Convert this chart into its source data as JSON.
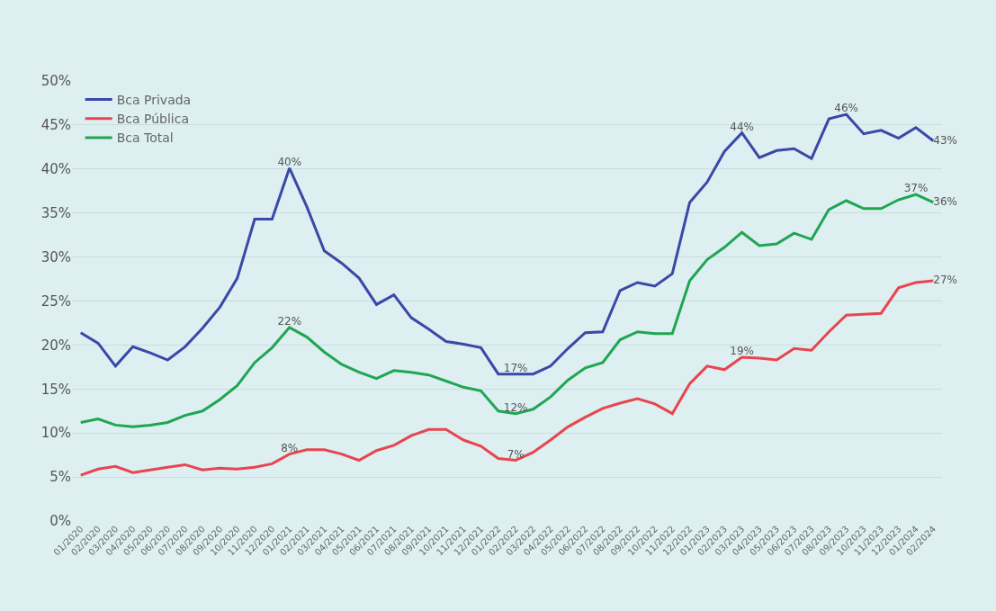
{
  "chart_data": {
    "type": "line",
    "categories": [
      "01/2020",
      "02/2020",
      "03/2020",
      "04/2020",
      "05/2020",
      "06/2020",
      "07/2020",
      "08/2020",
      "09/2020",
      "10/2020",
      "11/2020",
      "12/2020",
      "01/2021",
      "02/2021",
      "03/2021",
      "04/2021",
      "05/2021",
      "06/2021",
      "07/2021",
      "08/2021",
      "09/2021",
      "10/2021",
      "11/2021",
      "12/2021",
      "01/2022",
      "02/2022",
      "03/2022",
      "04/2022",
      "05/2022",
      "06/2022",
      "07/2022",
      "08/2022",
      "09/2022",
      "10/2022",
      "11/2022",
      "12/2022",
      "01/2023",
      "02/2023",
      "03/2023",
      "04/2023",
      "05/2023",
      "06/2023",
      "07/2023",
      "08/2023",
      "09/2023",
      "10/2023",
      "11/2023",
      "12/2023",
      "01/2024",
      "02/2024"
    ],
    "series": [
      {
        "name": "Bca Privada",
        "color": "#3a48a8",
        "values": [
          21.4,
          20.2,
          17.6,
          19.8,
          19.1,
          18.3,
          19.8,
          21.9,
          24.3,
          27.6,
          34.3,
          34.3,
          40.1,
          35.7,
          30.7,
          29.3,
          27.6,
          24.6,
          25.7,
          23.1,
          21.8,
          20.4,
          20.1,
          19.7,
          16.7,
          16.7,
          16.7,
          17.6,
          19.6,
          21.4,
          21.5,
          26.2,
          27.1,
          26.7,
          28.1,
          36.2,
          38.5,
          42.0,
          44.1,
          41.3,
          42.1,
          42.3,
          41.2,
          45.7,
          46.2,
          44.0,
          44.4,
          43.5,
          44.7,
          43.2
        ],
        "value_labels": [
          null,
          null,
          null,
          null,
          null,
          null,
          null,
          null,
          null,
          null,
          null,
          null,
          "40%",
          null,
          null,
          null,
          null,
          null,
          null,
          null,
          null,
          null,
          null,
          null,
          null,
          "17%",
          null,
          null,
          null,
          null,
          null,
          null,
          null,
          null,
          null,
          null,
          null,
          null,
          "44%",
          null,
          null,
          null,
          null,
          null,
          "46%",
          null,
          null,
          null,
          null,
          "43%"
        ]
      },
      {
        "name": "Bca Pública",
        "color": "#e8454f",
        "values": [
          5.2,
          5.9,
          6.2,
          5.5,
          5.8,
          6.1,
          6.4,
          5.8,
          6.0,
          5.9,
          6.1,
          6.5,
          7.6,
          8.1,
          8.1,
          7.6,
          6.9,
          8.0,
          8.6,
          9.7,
          10.4,
          10.4,
          9.2,
          8.5,
          7.1,
          6.9,
          7.8,
          9.2,
          10.7,
          11.8,
          12.8,
          13.4,
          13.9,
          13.3,
          12.2,
          15.6,
          17.6,
          17.2,
          18.6,
          18.5,
          18.3,
          19.6,
          19.4,
          21.5,
          23.4,
          23.5,
          23.6,
          26.5,
          27.1,
          27.3
        ],
        "value_labels": [
          null,
          null,
          null,
          null,
          null,
          null,
          null,
          null,
          null,
          null,
          null,
          null,
          "8%",
          null,
          null,
          null,
          null,
          null,
          null,
          null,
          null,
          null,
          null,
          null,
          null,
          "7%",
          null,
          null,
          null,
          null,
          null,
          null,
          null,
          null,
          null,
          null,
          null,
          null,
          "19%",
          null,
          null,
          null,
          null,
          null,
          null,
          null,
          null,
          null,
          null,
          "27%"
        ]
      },
      {
        "name": "Bca Total",
        "color": "#1fa653",
        "values": [
          11.2,
          11.6,
          10.9,
          10.7,
          10.9,
          11.2,
          12.0,
          12.5,
          13.8,
          15.4,
          18.0,
          19.7,
          22.0,
          20.9,
          19.2,
          17.8,
          16.9,
          16.2,
          17.1,
          16.9,
          16.6,
          15.9,
          15.2,
          14.8,
          12.5,
          12.2,
          12.7,
          14.1,
          16.0,
          17.4,
          18.0,
          20.6,
          21.5,
          21.3,
          21.3,
          27.3,
          29.7,
          31.1,
          32.8,
          31.3,
          31.5,
          32.7,
          32.0,
          35.4,
          36.4,
          35.5,
          35.5,
          36.5,
          37.1,
          36.2
        ],
        "value_labels": [
          null,
          null,
          null,
          null,
          null,
          null,
          null,
          null,
          null,
          null,
          null,
          null,
          "22%",
          null,
          null,
          null,
          null,
          null,
          null,
          null,
          null,
          null,
          null,
          null,
          null,
          "12%",
          null,
          null,
          null,
          null,
          null,
          null,
          null,
          null,
          null,
          null,
          null,
          null,
          null,
          null,
          null,
          null,
          null,
          null,
          null,
          null,
          null,
          null,
          "37%",
          "36%"
        ]
      }
    ],
    "ylim": [
      0,
      50
    ],
    "yticks": [
      {
        "value": 0,
        "label": "0%"
      },
      {
        "value": 5,
        "label": "5%"
      },
      {
        "value": 10,
        "label": "10%"
      },
      {
        "value": 15,
        "label": "15%"
      },
      {
        "value": 20,
        "label": "20%"
      },
      {
        "value": 25,
        "label": "25%"
      },
      {
        "value": 30,
        "label": "30%"
      },
      {
        "value": 35,
        "label": "35%"
      },
      {
        "value": 40,
        "label": "40%"
      },
      {
        "value": 45,
        "label": "45%"
      },
      {
        "value": 50,
        "label": "50%"
      }
    ],
    "grid": "y",
    "legend": "top left",
    "marker": "none",
    "line_style": "solid"
  }
}
